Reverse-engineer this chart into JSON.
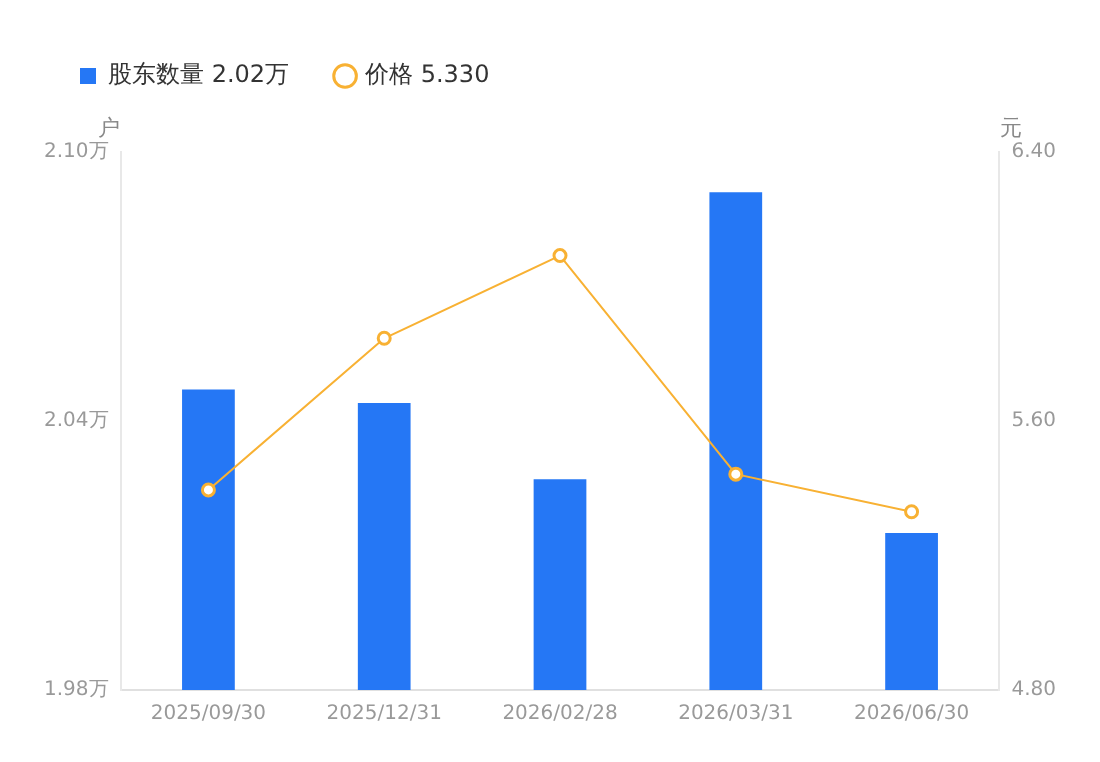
{
  "chart_data": {
    "type": "bar",
    "categories": [
      "2025/09/30",
      "2025/12/31",
      "2026/02/28",
      "2026/03/31",
      "2026/06/30"
    ],
    "series": [
      {
        "name": "股东数量 2.02万",
        "color": "#2577f5",
        "values": [
          2.047,
          2.044,
          2.027,
          2.091,
          2.015
        ]
      },
      {
        "name": "价格 5.330",
        "type": "line",
        "axis": "y2",
        "color": "#f8b133",
        "values": [
          5.395,
          5.846,
          6.092,
          5.442,
          5.33
        ]
      }
    ],
    "ylabel": "户",
    "y2label": "元",
    "ylim": [
      1.98,
      2.1
    ],
    "yticks": [
      {
        "value": 1.98,
        "label": "1.98万"
      },
      {
        "value": 2.04,
        "label": "2.04万"
      },
      {
        "value": 2.1,
        "label": "2.10万"
      }
    ],
    "y2lim": [
      4.8,
      6.4
    ],
    "y2ticks": [
      {
        "value": 4.8,
        "label": "4.80"
      },
      {
        "value": 5.6,
        "label": "5.60"
      },
      {
        "value": 6.4,
        "label": "6.40"
      }
    ],
    "legend": "top left",
    "marker": "circle",
    "grid": false
  }
}
